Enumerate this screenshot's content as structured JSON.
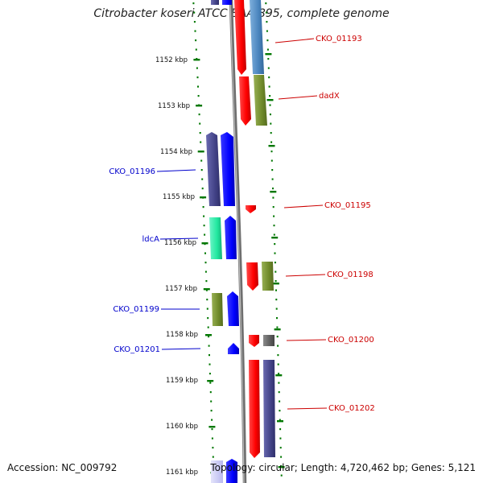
{
  "title": "Citrobacter koseri ATCC BAA-895, complete genome",
  "footer": {
    "accession": "Accession: NC_009792",
    "summary": "Topology: circular; Length: 4,720,462 bp; Genes: 5,121"
  },
  "ticks": [
    "1152 kbp",
    "1153 kbp",
    "1154 kbp",
    "1155 kbp",
    "1156 kbp",
    "1157 kbp",
    "1158 kbp",
    "1159 kbp",
    "1160 kbp",
    "1161 kbp"
  ],
  "colors": {
    "forward_label": "#cc0000",
    "reverse_label": "#0000cc",
    "tick_mark": "#007700",
    "backbone": "#7a7a7a"
  },
  "gene_labels": {
    "forward": [
      {
        "name": "CKO_01193"
      },
      {
        "name": "dadX"
      },
      {
        "name": "CKO_01195"
      },
      {
        "name": "CKO_01198"
      },
      {
        "name": "CKO_01200"
      },
      {
        "name": "CKO_01202"
      }
    ],
    "reverse": [
      {
        "name": "CKO_01196"
      },
      {
        "name": "ldcA"
      },
      {
        "name": "CKO_01199"
      },
      {
        "name": "CKO_01201"
      }
    ]
  }
}
